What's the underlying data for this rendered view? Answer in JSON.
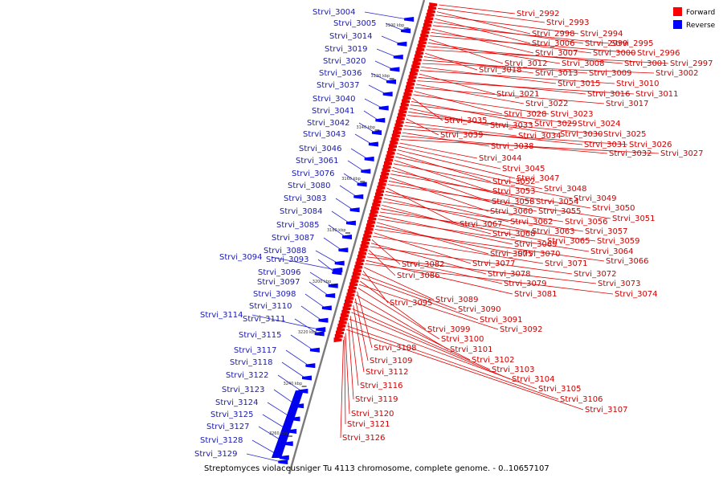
{
  "caption": "Streptomyces violaceusniger Tu 4113 chromosome, complete genome. - 0..10657107",
  "legend": [
    {
      "label": "Forward",
      "color": "#ff0000"
    },
    {
      "label": "Reverse",
      "color": "#0000ff"
    }
  ],
  "ticks": [
    "3100 kbp",
    "3120 kbp",
    "3140 kbp",
    "3160 kbp",
    "3180 kbp",
    "3200 kbp",
    "3220 kbp",
    "3240 kbp",
    "3260 kbp"
  ],
  "colors": {
    "forward_label": "#cc0000",
    "reverse_label": "#1a1ab0",
    "axis": "#7a7a7a"
  },
  "reverse_labels": [
    "Strvi_3004",
    "Strvi_3005",
    "Strvi_3014",
    "Strvi_3019",
    "Strvi_3020",
    "Strvi_3036",
    "Strvi_3037",
    "Strvi_3040",
    "Strvi_3041",
    "Strvi_3042",
    "Strvi_3043",
    "Strvi_3046",
    "Strvi_3061",
    "Strvi_3076",
    "Strvi_3080",
    "Strvi_3083",
    "Strvi_3084",
    "Strvi_3085",
    "Strvi_3087",
    "Strvi_3088",
    "Strvi_3094",
    "Strvi_3093",
    "Strvi_3096",
    "Strvi_3097",
    "Strvi_3098",
    "Strvi_3110",
    "Strvi_3114",
    "Strvi_3111",
    "Strvi_3115",
    "Strvi_3117",
    "Strvi_3118",
    "Strvi_3122",
    "Strvi_3123",
    "Strvi_3124",
    "Strvi_3125",
    "Strvi_3127",
    "Strvi_3128",
    "Strvi_3129"
  ],
  "forward_labels": [
    "Strvi_2992",
    "Strvi_2993",
    "Strvi_2998",
    "Strvi_2994",
    "Strvi_3006",
    "Strvi_2999",
    "Strvi_2995",
    "Strvi_3007",
    "Strvi_3000",
    "Strvi_2996",
    "Strvi_3012",
    "Strvi_3008",
    "Strvi_3001",
    "Strvi_2997",
    "Strvi_3018",
    "Strvi_3013",
    "Strvi_3009",
    "Strvi_3002",
    "Strvi_3015",
    "Strvi_3010",
    "Strvi_3021",
    "Strvi_3016",
    "Strvi_3011",
    "Strvi_3022",
    "Strvi_3017",
    "Strvi_3028",
    "Strvi_3023",
    "Strvi_3035",
    "Strvi_3029",
    "Strvi_3024",
    "Strvi_3033",
    "Strvi_3030",
    "Strvi_3025",
    "Strvi_3039",
    "Strvi_3034",
    "Strvi_3031",
    "Strvi_3026",
    "Strvi_3038",
    "Strvi_3032",
    "Strvi_3027",
    "Strvi_3044",
    "Strvi_3045",
    "Strvi_3047",
    "Strvi_3052",
    "Strvi_3048",
    "Strvi_3053",
    "Strvi_3049",
    "Strvi_3058",
    "Strvi_3054",
    "Strvi_3050",
    "Strvi_3060",
    "Strvi_3055",
    "Strvi_3051",
    "Strvi_3067",
    "Strvi_3062",
    "Strvi_3056",
    "Strvi_3063",
    "Strvi_3057",
    "Strvi_3068",
    "Strvi_3065",
    "Strvi_3059",
    "Strvi_3069",
    "Strvi_3064",
    "Strvi_3075",
    "Strvi_3070",
    "Strvi_3066",
    "Strvi_3077",
    "Strvi_3071",
    "Strvi_3082",
    "Strvi_3078",
    "Strvi_3072",
    "Strvi_3086",
    "Strvi_3079",
    "Strvi_3073",
    "Strvi_3081",
    "Strvi_3074",
    "Strvi_3089",
    "Strvi_3095",
    "Strvi_3090",
    "Strvi_3091",
    "Strvi_3099",
    "Strvi_3092",
    "Strvi_3100",
    "Strvi_3108",
    "Strvi_3101",
    "Strvi_3109",
    "Strvi_3102",
    "Strvi_3112",
    "Strvi_3103",
    "Strvi_3104",
    "Strvi_3116",
    "Strvi_3105",
    "Strvi_3119",
    "Strvi_3106",
    "Strvi_3107",
    "Strvi_3120",
    "Strvi_3121",
    "Strvi_3126"
  ]
}
